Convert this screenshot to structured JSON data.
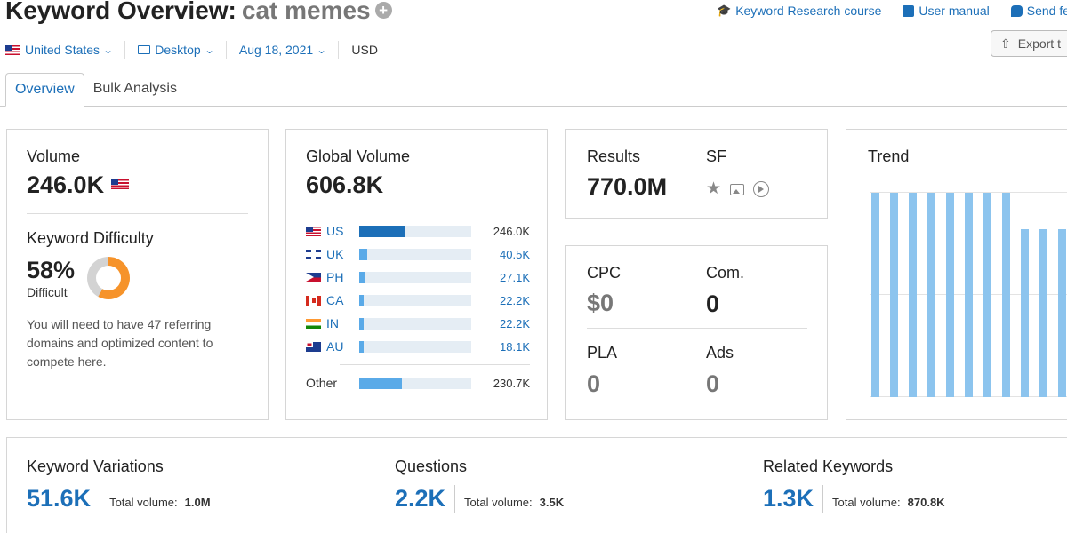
{
  "header": {
    "title": "Keyword Overview:",
    "keyword": "cat memes",
    "links": [
      {
        "label": "Keyword Research course",
        "icon": "graduation-cap-icon"
      },
      {
        "label": "User manual",
        "icon": "book-icon"
      },
      {
        "label": "Send fe",
        "icon": "chat-bubble-icon"
      }
    ],
    "export_label": "Export t"
  },
  "filters": {
    "country": "United States",
    "device": "Desktop",
    "date": "Aug 18, 2021",
    "currency": "USD"
  },
  "tabs": [
    {
      "label": "Overview",
      "active": true
    },
    {
      "label": "Bulk Analysis",
      "active": false
    }
  ],
  "volume": {
    "label": "Volume",
    "value": "246.0K",
    "kd_label": "Keyword Difficulty",
    "kd_value": "58%",
    "kd_percent": 58,
    "kd_level": "Difficult",
    "kd_note": "You will need to have 47 referring domains and optimized content to compete here."
  },
  "global_volume": {
    "label": "Global Volume",
    "value": "606.8K",
    "countries": [
      {
        "code": "US",
        "flag": "us",
        "value": "246.0K",
        "share": 0.41
      },
      {
        "code": "UK",
        "flag": "uk",
        "value": "40.5K",
        "share": 0.07
      },
      {
        "code": "PH",
        "flag": "ph",
        "value": "27.1K",
        "share": 0.045
      },
      {
        "code": "CA",
        "flag": "ca",
        "value": "22.2K",
        "share": 0.037
      },
      {
        "code": "IN",
        "flag": "in",
        "value": "22.2K",
        "share": 0.037
      },
      {
        "code": "AU",
        "flag": "au",
        "value": "18.1K",
        "share": 0.03
      }
    ],
    "other": {
      "label": "Other",
      "value": "230.7K",
      "share": 0.38
    }
  },
  "results": {
    "label": "Results",
    "value": "770.0M",
    "sf_label": "SF"
  },
  "metrics": {
    "cpc_label": "CPC",
    "cpc_value": "$0",
    "com_label": "Com.",
    "com_value": "0",
    "pla_label": "PLA",
    "pla_value": "0",
    "ads_label": "Ads",
    "ads_value": "0"
  },
  "trend": {
    "label": "Trend",
    "values": [
      1,
      1,
      1,
      1,
      1,
      1,
      1,
      1,
      0.82,
      0.82,
      0.82,
      0.82
    ],
    "color": "#8cc4ee"
  },
  "bottom": {
    "variations": {
      "label": "Keyword Variations",
      "value": "51.6K",
      "total_label": "Total volume:",
      "total_value": "1.0M"
    },
    "questions": {
      "label": "Questions",
      "value": "2.2K",
      "total_label": "Total volume:",
      "total_value": "3.5K"
    },
    "related": {
      "label": "Related Keywords",
      "value": "1.3K",
      "total_label": "Total volume:",
      "total_value": "870.8K"
    }
  },
  "colors": {
    "accent": "#1c6fb8",
    "bar": "#2c7ac7",
    "donut": "#f6932a"
  }
}
